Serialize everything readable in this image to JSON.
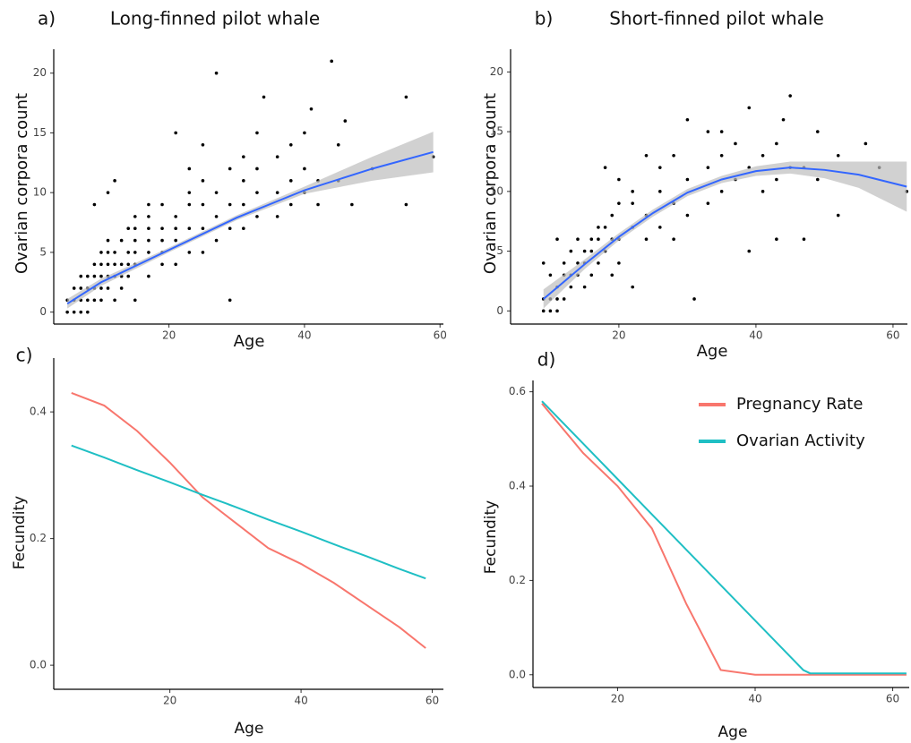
{
  "chart_data": [
    {
      "type": "scatter",
      "panel_label": "a)",
      "title": "Long-finned pilot whale",
      "x_label": "Age",
      "y_label": "Ovarian corpora count",
      "x": [
        5,
        5,
        6,
        6,
        6,
        7,
        7,
        7,
        7,
        8,
        8,
        8,
        8,
        9,
        9,
        9,
        9,
        9,
        10,
        10,
        10,
        10,
        10,
        11,
        11,
        11,
        11,
        11,
        11,
        12,
        12,
        12,
        12,
        12,
        13,
        13,
        13,
        13,
        14,
        14,
        14,
        14,
        15,
        15,
        15,
        15,
        15,
        15,
        17,
        17,
        17,
        17,
        17,
        17,
        19,
        19,
        19,
        19,
        19,
        21,
        21,
        21,
        21,
        21,
        23,
        23,
        23,
        23,
        23,
        25,
        25,
        25,
        25,
        25,
        27,
        27,
        27,
        27,
        29,
        29,
        29,
        29,
        31,
        31,
        31,
        31,
        33,
        33,
        33,
        33,
        34,
        36,
        36,
        36,
        38,
        38,
        38,
        40,
        40,
        40,
        41,
        42,
        42,
        44,
        45,
        45,
        46,
        47,
        50,
        55,
        55,
        59
      ],
      "values": [
        0,
        1,
        0,
        1,
        2,
        0,
        1,
        2,
        3,
        0,
        1,
        2,
        3,
        1,
        2,
        3,
        4,
        9,
        1,
        2,
        3,
        4,
        5,
        2,
        3,
        4,
        5,
        6,
        10,
        1,
        3,
        4,
        5,
        11,
        2,
        3,
        4,
        6,
        3,
        4,
        5,
        7,
        1,
        4,
        5,
        6,
        7,
        8,
        3,
        5,
        6,
        7,
        8,
        9,
        4,
        5,
        6,
        7,
        9,
        4,
        6,
        7,
        8,
        15,
        5,
        7,
        9,
        10,
        12,
        5,
        7,
        9,
        11,
        14,
        6,
        8,
        10,
        20,
        1,
        7,
        9,
        12,
        7,
        9,
        11,
        13,
        8,
        10,
        12,
        15,
        18,
        8,
        10,
        13,
        9,
        11,
        14,
        10,
        12,
        15,
        17,
        9,
        11,
        21,
        11,
        14,
        16,
        9,
        12,
        9,
        18,
        13
      ],
      "color": "#000000",
      "fit": {
        "color": "#3366ff",
        "band_color": "#bdbdbd",
        "x": [
          5,
          10,
          20,
          30,
          40,
          50,
          59
        ],
        "values": [
          0.7,
          2.5,
          5.2,
          7.9,
          10.2,
          12.0,
          13.4
        ],
        "lower": [
          0.3,
          2.2,
          5.0,
          7.7,
          9.9,
          11.0,
          11.7
        ],
        "upper": [
          1.1,
          2.8,
          5.4,
          8.1,
          10.5,
          13.0,
          15.1
        ]
      },
      "xlim": [
        3,
        60.5
      ],
      "ylim": [
        -1,
        22
      ],
      "xticks": [
        20,
        40,
        60
      ],
      "yticks": [
        0,
        5,
        10,
        15,
        20
      ]
    },
    {
      "type": "scatter",
      "panel_label": "b)",
      "title": "Short-finned pilot whale",
      "x_label": "Age",
      "y_label": "Ovarian corpora count",
      "x": [
        9,
        9,
        9,
        10,
        10,
        10,
        11,
        11,
        11,
        11,
        12,
        12,
        12,
        13,
        13,
        13,
        14,
        14,
        14,
        15,
        15,
        15,
        16,
        16,
        16,
        17,
        17,
        17,
        18,
        18,
        18,
        19,
        19,
        19,
        20,
        20,
        20,
        20,
        22,
        22,
        22,
        22,
        24,
        24,
        24,
        26,
        26,
        26,
        28,
        28,
        28,
        30,
        30,
        30,
        31,
        33,
        33,
        33,
        35,
        35,
        35,
        37,
        37,
        39,
        39,
        39,
        41,
        41,
        43,
        43,
        43,
        44,
        45,
        45,
        47,
        47,
        49,
        49,
        52,
        52,
        56,
        58,
        62
      ],
      "values": [
        0,
        1,
        4,
        0,
        1,
        3,
        0,
        1,
        2,
        6,
        1,
        3,
        4,
        2,
        3,
        5,
        3,
        4,
        6,
        2,
        4,
        5,
        3,
        5,
        6,
        4,
        6,
        7,
        5,
        7,
        12,
        3,
        6,
        8,
        4,
        6,
        9,
        11,
        2,
        7,
        9,
        10,
        6,
        8,
        13,
        7,
        10,
        12,
        6,
        9,
        13,
        8,
        11,
        16,
        1,
        9,
        12,
        15,
        10,
        13,
        15,
        11,
        14,
        5,
        12,
        17,
        10,
        13,
        6,
        11,
        14,
        16,
        18,
        12,
        6,
        12,
        11,
        15,
        8,
        13,
        14,
        12,
        10
      ],
      "color": "#000000",
      "fit": {
        "color": "#3366ff",
        "band_color": "#bdbdbd",
        "x": [
          9,
          15,
          20,
          25,
          30,
          35,
          40,
          45,
          50,
          55,
          62
        ],
        "values": [
          1.0,
          3.9,
          6.2,
          8.2,
          9.9,
          11.0,
          11.7,
          12.0,
          11.8,
          11.4,
          10.4
        ],
        "lower": [
          0.2,
          3.5,
          5.9,
          7.9,
          9.6,
          10.7,
          11.3,
          11.5,
          11.1,
          10.3,
          8.3
        ],
        "upper": [
          1.8,
          4.3,
          6.5,
          8.5,
          10.2,
          11.3,
          12.1,
          12.5,
          12.5,
          12.5,
          12.5
        ]
      },
      "xlim": [
        4.2,
        62.1
      ],
      "ylim": [
        -1.1,
        21.9
      ],
      "xticks": [
        20,
        40,
        60
      ],
      "yticks": [
        0,
        5,
        10,
        15,
        20
      ]
    },
    {
      "type": "line",
      "panel_label": "c)",
      "x_label": "Age",
      "y_label": "Fecundity",
      "x": [
        5,
        10,
        15,
        20,
        25,
        30,
        35,
        40,
        45,
        50,
        55,
        59
      ],
      "series": [
        {
          "color": "#f8766d",
          "values": [
            0.43,
            0.41,
            0.37,
            0.32,
            0.265,
            0.225,
            0.185,
            0.16,
            0.13,
            0.095,
            0.06,
            0.027
          ]
        },
        {
          "color": "#1fbfc4",
          "values": [
            0.347,
            0.328,
            0.308,
            0.289,
            0.269,
            0.25,
            0.23,
            0.211,
            0.191,
            0.172,
            0.152,
            0.137
          ]
        }
      ],
      "xlim": [
        2.3,
        61.7
      ],
      "ylim": [
        -0.038,
        0.485
      ],
      "xticks": [
        20,
        40,
        60
      ],
      "yticks": [
        {
          "value": 0,
          "label": "0.0"
        },
        {
          "value": 0.2,
          "label": "0.2"
        },
        {
          "value": 0.4,
          "label": "0.4"
        }
      ]
    },
    {
      "type": "line",
      "panel_label": "d)",
      "x_label": "Age",
      "y_label": "Fecundity",
      "legend": "top-right",
      "x": [
        9,
        15,
        20,
        25,
        30,
        35,
        40,
        47,
        48,
        62
      ],
      "series": [
        {
          "name": "Pregnancy Rate",
          "color": "#f8766d",
          "values": [
            0.575,
            0.47,
            0.4,
            0.31,
            0.15,
            0.01,
            0,
            0,
            0,
            0
          ]
        },
        {
          "name": "Ovarian Activity",
          "color": "#1fbfc4",
          "values": [
            0.58,
            0.49,
            0.415,
            0.34,
            0.265,
            0.19,
            0.115,
            0.01,
            0.003,
            0.003
          ]
        }
      ],
      "xlim": [
        7.7,
        62.4
      ],
      "ylim": [
        -0.027,
        0.624
      ],
      "xticks": [
        20,
        40,
        60
      ],
      "yticks": [
        {
          "value": 0,
          "label": "0.0"
        },
        {
          "value": 0.2,
          "label": "0.2"
        },
        {
          "value": 0.4,
          "label": "0.4"
        },
        {
          "value": 0.6,
          "label": "0.6"
        }
      ]
    }
  ]
}
